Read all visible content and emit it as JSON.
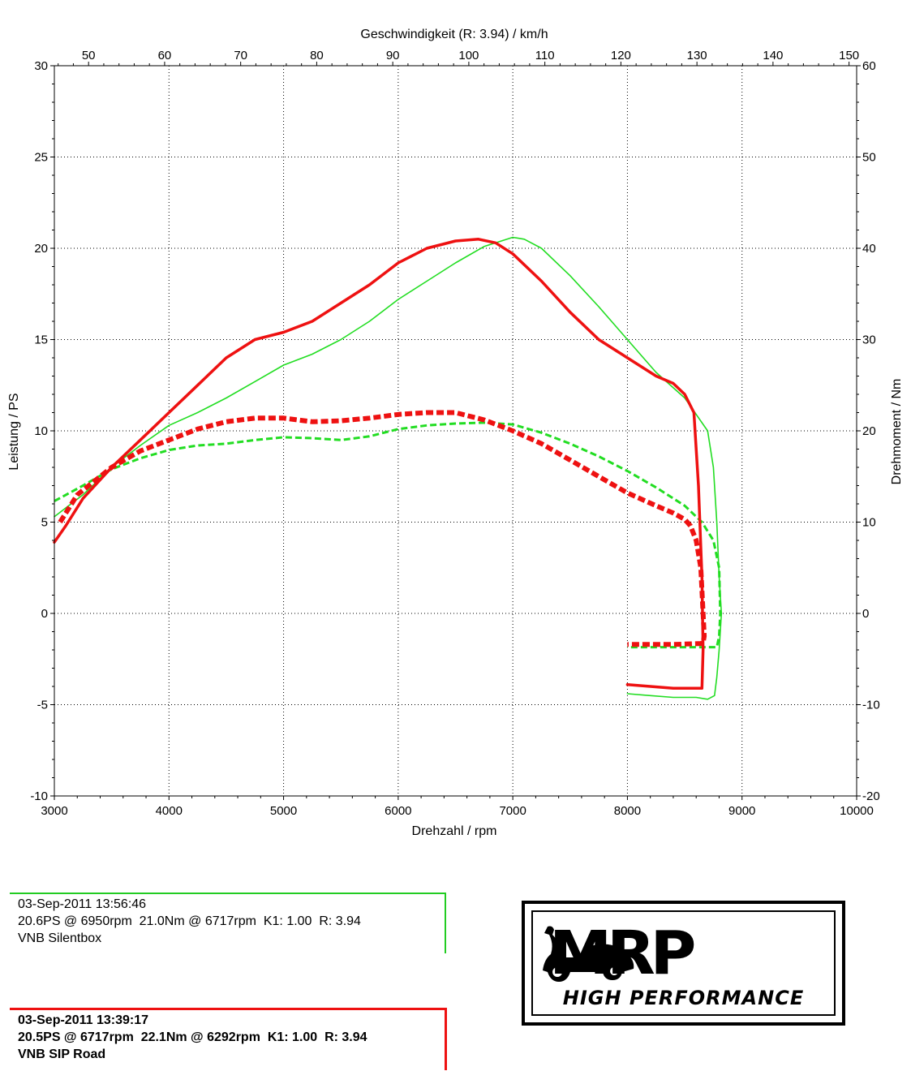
{
  "chart_data": {
    "type": "line",
    "title": "Geschwindigkeit (R: 3.94) / km/h",
    "xlabel": "Drehzahl / rpm",
    "ylabel_left": "Leistung / PS",
    "ylabel_right": "Drehmoment / Nm",
    "x_range": [
      3000,
      10000
    ],
    "y_left_range": [
      -10,
      30
    ],
    "y_right_range": [
      -20,
      60
    ],
    "top_speed_range": [
      45.5,
      151
    ],
    "x_ticks": [
      3000,
      4000,
      5000,
      6000,
      7000,
      8000,
      9000,
      10000
    ],
    "y_left_ticks": [
      -10,
      -5,
      0,
      5,
      10,
      15,
      20,
      25,
      30
    ],
    "y_right_ticks": [
      -20,
      -10,
      0,
      10,
      20,
      30,
      40,
      50,
      60
    ],
    "top_ticks": [
      50,
      60,
      70,
      80,
      90,
      100,
      110,
      120,
      130,
      140,
      150
    ],
    "grid": true,
    "series": [
      {
        "name": "VNB Silentbox power",
        "color": "#22dd22",
        "style": "solid",
        "width": 1.6,
        "axis": "left",
        "x": [
          3000,
          3250,
          3500,
          3750,
          4000,
          4250,
          4500,
          4750,
          5000,
          5250,
          5500,
          5750,
          6000,
          6250,
          6500,
          6750,
          7000,
          7100,
          7250,
          7500,
          7750,
          8000,
          8250,
          8500,
          8700,
          8750,
          8780,
          8800,
          8820,
          8800,
          8780,
          8760,
          8700,
          8600,
          8400,
          8200,
          8000
        ],
        "y": [
          5.3,
          6.5,
          8.0,
          9.2,
          10.3,
          11.0,
          11.8,
          12.7,
          13.6,
          14.2,
          15.0,
          16.0,
          17.2,
          18.2,
          19.2,
          20.1,
          20.6,
          20.5,
          20.0,
          18.5,
          16.8,
          15.0,
          13.2,
          11.8,
          10.0,
          8.0,
          5.0,
          2.0,
          0.0,
          -2.0,
          -3.5,
          -4.5,
          -4.7,
          -4.6,
          -4.6,
          -4.5,
          -4.4
        ]
      },
      {
        "name": "VNB Silentbox torque",
        "color": "#22dd22",
        "style": "dashed",
        "width": 3,
        "axis": "right",
        "x": [
          3000,
          3250,
          3500,
          3750,
          4000,
          4250,
          4500,
          4750,
          5000,
          5250,
          5500,
          5750,
          6000,
          6250,
          6500,
          6750,
          7000,
          7250,
          7500,
          7750,
          8000,
          8250,
          8500,
          8650,
          8750,
          8800,
          8810,
          8800,
          8780,
          8600,
          8200,
          8000
        ],
        "y": [
          12.3,
          14.0,
          15.8,
          17.0,
          17.9,
          18.4,
          18.6,
          19.0,
          19.3,
          19.2,
          19.0,
          19.4,
          20.2,
          20.6,
          20.8,
          20.9,
          20.7,
          19.8,
          18.6,
          17.2,
          15.6,
          13.8,
          11.8,
          10.0,
          8.0,
          5.0,
          0.0,
          -2.5,
          -3.7,
          -3.7,
          -3.7,
          -3.7
        ]
      },
      {
        "name": "VNB SIP Road power",
        "color": "#ee1111",
        "style": "solid",
        "width": 3.5,
        "axis": "left",
        "x": [
          3000,
          3100,
          3250,
          3500,
          3750,
          4000,
          4250,
          4500,
          4750,
          5000,
          5250,
          5500,
          5750,
          6000,
          6250,
          6500,
          6700,
          6850,
          7000,
          7250,
          7500,
          7750,
          8000,
          8250,
          8400,
          8500,
          8580,
          8620,
          8650,
          8660,
          8650,
          8600,
          8400,
          8200,
          8000
        ],
        "y": [
          3.9,
          4.8,
          6.3,
          8.0,
          9.5,
          11.0,
          12.5,
          14.0,
          15.0,
          15.4,
          16.0,
          17.0,
          18.0,
          19.2,
          20.0,
          20.4,
          20.5,
          20.3,
          19.7,
          18.2,
          16.5,
          15.0,
          14.0,
          13.0,
          12.6,
          12.0,
          11.0,
          7.0,
          2.0,
          -2.0,
          -4.1,
          -4.1,
          -4.1,
          -4.0,
          -3.9
        ]
      },
      {
        "name": "VNB SIP Road torque",
        "color": "#ee1111",
        "style": "dashed",
        "width": 6,
        "axis": "right",
        "x": [
          3050,
          3200,
          3500,
          3750,
          4000,
          4250,
          4500,
          4750,
          5000,
          5250,
          5500,
          5750,
          6000,
          6250,
          6500,
          6750,
          7000,
          7250,
          7500,
          7750,
          8000,
          8250,
          8400,
          8500,
          8550,
          8600,
          8640,
          8660,
          8670,
          8660,
          8640,
          8400,
          8000
        ],
        "y": [
          10.0,
          13.0,
          16.0,
          17.8,
          19.0,
          20.2,
          21.0,
          21.4,
          21.4,
          21.0,
          21.1,
          21.4,
          21.8,
          22.0,
          22.0,
          21.2,
          20.0,
          18.6,
          16.8,
          15.0,
          13.2,
          11.8,
          11.0,
          10.3,
          9.6,
          8.0,
          5.0,
          0.0,
          -2.5,
          -3.2,
          -3.3,
          -3.4,
          -3.4
        ]
      }
    ]
  },
  "legend": [
    {
      "date": "03-Sep-2011 13:56:46",
      "stats": "20.6PS @ 6950rpm  21.0Nm @ 6717rpm  K1: 1.00  R: 3.94",
      "name": "VNB Silentbox",
      "color": "#22cc22"
    },
    {
      "date": "03-Sep-2011 13:39:17",
      "stats": "20.5PS @ 6717rpm  22.1Nm @ 6292rpm  K1: 1.00  R: 3.94",
      "name": "VNB SIP Road",
      "color": "#ee1111"
    }
  ],
  "logo": {
    "mark": "MRP",
    "tagline": "HIGH PERFORMANCE",
    "icon": "scooter-icon"
  }
}
